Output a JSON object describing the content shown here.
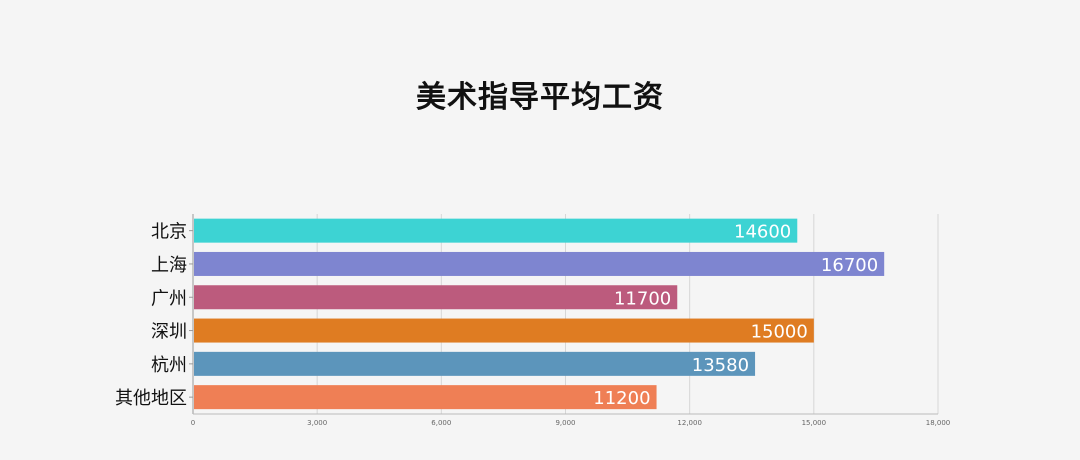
{
  "chart_data": {
    "type": "bar",
    "orientation": "horizontal",
    "title": "美术指导平均工资",
    "categories": [
      "北京",
      "上海",
      "广州",
      "深圳",
      "杭州",
      "其他地区"
    ],
    "values": [
      14600,
      16700,
      11700,
      15000,
      13580,
      11200
    ],
    "colors": [
      "#3dd3d3",
      "#7e85d0",
      "#bc5b7d",
      "#df7c22",
      "#5c95bb",
      "#ef7f55"
    ],
    "xlim": [
      0,
      18000
    ],
    "xticks": [
      0,
      3000,
      6000,
      9000,
      12000,
      15000,
      18000
    ],
    "xtick_labels": [
      "0",
      "3,000",
      "6,000",
      "9,000",
      "12,000",
      "15,000",
      "18,000"
    ],
    "xlabel": "",
    "ylabel": "",
    "grid": true,
    "legend": "none"
  }
}
